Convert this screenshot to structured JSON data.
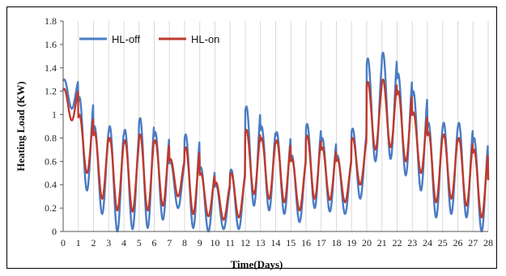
{
  "chart_data": {
    "type": "line",
    "xlabel": "Time(Days)",
    "ylabel": "Heating Load (KW)",
    "xlim": [
      0,
      28
    ],
    "ylim": [
      0,
      1.8
    ],
    "x_ticks": [
      0,
      1,
      2,
      3,
      4,
      5,
      6,
      7,
      8,
      9,
      10,
      11,
      12,
      13,
      14,
      15,
      16,
      17,
      18,
      19,
      20,
      21,
      22,
      23,
      24,
      25,
      26,
      27,
      28
    ],
    "y_ticks": [
      0,
      0.2,
      0.4,
      0.6,
      0.8,
      1,
      1.2,
      1.4,
      1.6,
      1.8
    ],
    "y_tick_labels": [
      "0",
      "0.2",
      "0.4",
      "0.6",
      "0.8",
      "1",
      "1.2",
      "1.4",
      "1.6",
      "1.8"
    ],
    "grid": "vertical",
    "legend_position": "top-left",
    "series": [
      {
        "name": "HL-off",
        "color": "#4a7cc4",
        "daily_peak": [
          1.3,
          1.15,
          0.9,
          0.9,
          0.87,
          0.97,
          0.85,
          0.6,
          0.83,
          0.55,
          0.4,
          0.53,
          1.07,
          0.9,
          0.85,
          0.65,
          0.92,
          0.8,
          0.65,
          0.88,
          1.48,
          1.53,
          1.35,
          1.2,
          0.93,
          0.93,
          0.93,
          0.8
        ],
        "daily_min": [
          1.05,
          0.35,
          0.15,
          0.0,
          0.02,
          0.03,
          0.1,
          0.2,
          0.03,
          0.0,
          0.02,
          0.02,
          0.22,
          0.18,
          0.15,
          0.08,
          0.2,
          0.17,
          0.15,
          0.28,
          0.6,
          0.62,
          0.48,
          0.35,
          0.12,
          0.15,
          0.12,
          0.0
        ]
      },
      {
        "name": "HL-on",
        "color": "#c0392b",
        "daily_peak": [
          1.22,
          1.0,
          0.85,
          0.8,
          0.78,
          0.83,
          0.78,
          0.62,
          0.72,
          0.5,
          0.42,
          0.5,
          0.87,
          0.8,
          0.78,
          0.62,
          0.82,
          0.72,
          0.62,
          0.8,
          1.28,
          1.3,
          1.2,
          1.02,
          0.85,
          0.83,
          0.8,
          0.7
        ],
        "daily_min": [
          0.95,
          0.5,
          0.28,
          0.18,
          0.17,
          0.18,
          0.22,
          0.3,
          0.15,
          0.13,
          0.1,
          0.12,
          0.32,
          0.28,
          0.25,
          0.18,
          0.28,
          0.27,
          0.25,
          0.4,
          0.7,
          0.72,
          0.6,
          0.5,
          0.25,
          0.28,
          0.22,
          0.12
        ]
      }
    ]
  }
}
